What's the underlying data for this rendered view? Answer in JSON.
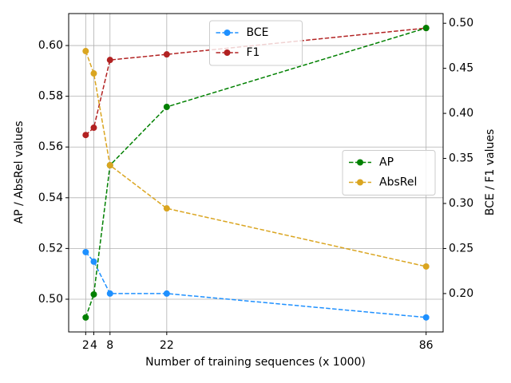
{
  "chart_data": {
    "type": "line",
    "xlabel": "Number of training sequences (x 1000)",
    "ylabel": "AP / AbsRel values",
    "y2label": "BCE / F1 values",
    "x": [
      2,
      4,
      8,
      22,
      86
    ],
    "xlim": [
      -2.2,
      90.2
    ],
    "xticks": [
      2,
      4,
      8,
      22,
      86
    ],
    "ylim": [
      0.4871,
      0.6126
    ],
    "yticks": [
      {
        "value": 0.5,
        "label": "0.50"
      },
      0.52,
      0.54,
      0.56,
      0.58,
      {
        "value": 0.6,
        "label": "0.60"
      }
    ],
    "y2lim": [
      0.1574,
      0.5108
    ],
    "y2ticks": [
      {
        "value": 0.2,
        "label": "0.20"
      },
      0.25,
      {
        "value": 0.3,
        "label": "0.30"
      },
      0.35,
      {
        "value": 0.4,
        "label": "0.40"
      },
      0.45,
      {
        "value": 0.5,
        "label": "0.50"
      }
    ],
    "grid": true,
    "legend": "center right",
    "legend_y2": "upper center",
    "series": [
      {
        "name": "BCE",
        "color": "#1e90ff",
        "axis": "y2",
        "values": [
          0.246,
          0.2354,
          0.2,
          0.2,
          0.1735
        ]
      },
      {
        "name": "F1",
        "color": "#b22222",
        "axis": "y2",
        "values": [
          0.376,
          0.3841,
          0.4593,
          0.4655,
          0.4947
        ]
      },
      {
        "name": "AP",
        "color": "#008000",
        "values": [
          0.4928,
          0.5019,
          0.5528,
          0.5758,
          0.6069
        ]
      },
      {
        "name": "AbsRel",
        "color": "#daa520",
        "values": [
          0.5978,
          0.589,
          0.5528,
          0.5358,
          0.5129
        ]
      }
    ]
  }
}
